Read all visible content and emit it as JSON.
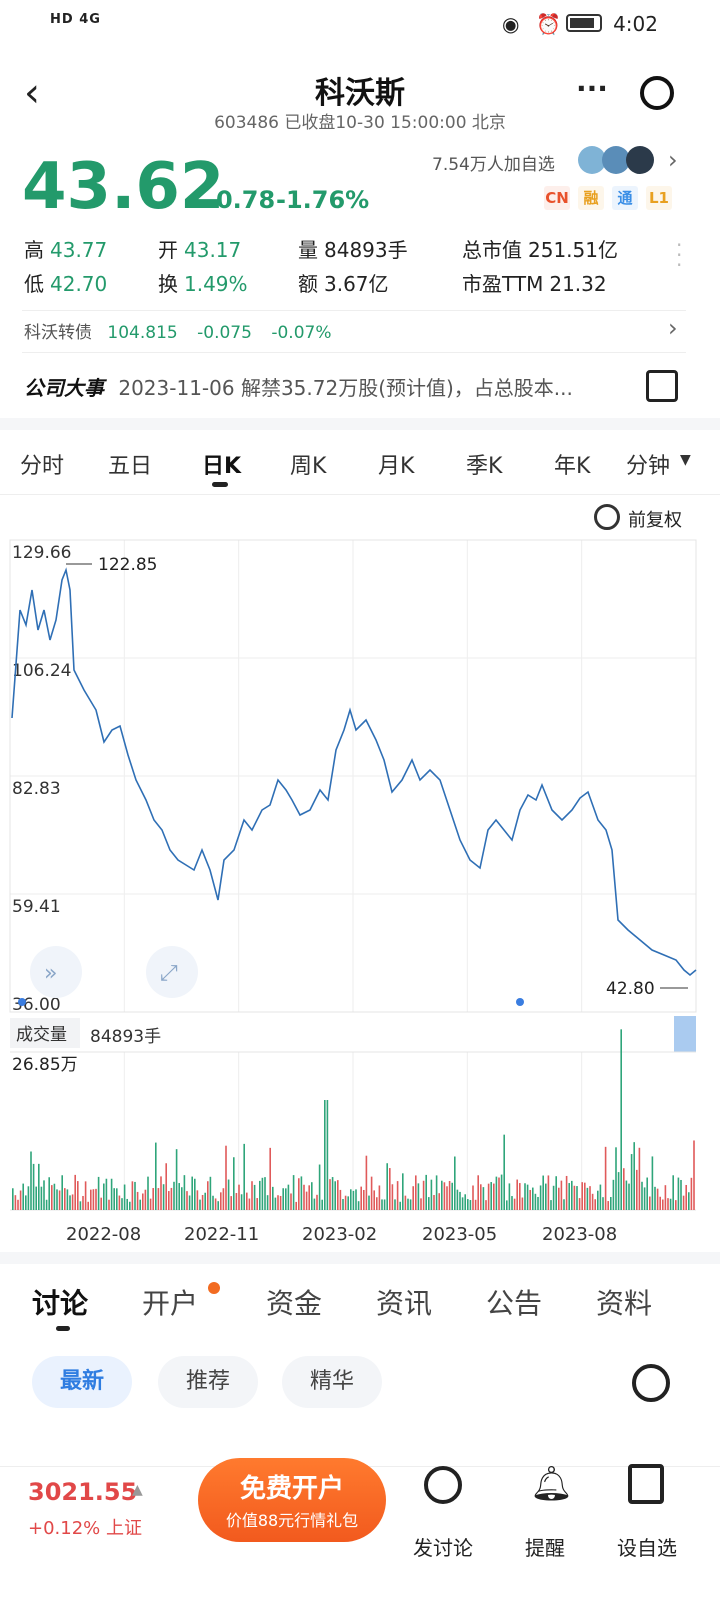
{
  "status": {
    "left": "HD 4G",
    "time": "4:02"
  },
  "header": {
    "title": "科沃斯",
    "subtitle": "603486 已收盘10-30 15:00:00 北京",
    "more": "···"
  },
  "quote": {
    "price": "43.62",
    "change": "-0.78",
    "pct": "-1.76%",
    "followers": "7.54万人加自选",
    "tags": [
      {
        "t": "CN",
        "c": "#e8512b"
      },
      {
        "t": "融",
        "c": "#e8a020"
      },
      {
        "t": "通",
        "c": "#3a8ee6"
      },
      {
        "t": "L1",
        "c": "#e8a020"
      }
    ],
    "stats": [
      {
        "label": "高",
        "value": "43.77"
      },
      {
        "label": "开",
        "value": "43.17"
      },
      {
        "label": "量",
        "value": "84893手"
      },
      {
        "label": "总市值",
        "value": "251.51亿"
      },
      {
        "label": "低",
        "value": "42.70"
      },
      {
        "label": "换",
        "value": "1.49%"
      },
      {
        "label": "额",
        "value": "3.67亿"
      },
      {
        "label": "市盈TTM",
        "value": "21.32"
      }
    ],
    "bond": {
      "label": "科沃转债",
      "price": "104.815",
      "chg": "-0.075",
      "pct": "-0.07%"
    },
    "event": {
      "label": "公司大事",
      "text": "2023-11-06 解禁35.72万股(预计值)，占总股本..."
    }
  },
  "chart_tabs": [
    "分时",
    "五日",
    "日K",
    "周K",
    "月K",
    "季K",
    "年K",
    "分钟"
  ],
  "chart_tab_active": "日K",
  "adjust_label": "前复权",
  "chart_data": {
    "type": "line",
    "ylabels": [
      "129.66",
      "106.24",
      "82.83",
      "59.41",
      "36.00"
    ],
    "ylim": [
      36.0,
      129.66
    ],
    "max_label": "122.85",
    "last_label": "42.80",
    "xlabels": [
      "2022-08",
      "2022-11",
      "2023-02",
      "2023-05",
      "2023-08"
    ],
    "volume_label": "成交量",
    "volume_value": "84893手",
    "volume_max": "26.85万"
  },
  "discuss_tabs": [
    "讨论",
    "开户",
    "资金",
    "资讯",
    "公告",
    "资料"
  ],
  "pills": [
    "最新",
    "推荐",
    "精华"
  ],
  "bottom": {
    "index_value": "3021.55",
    "index_change": "+0.12%",
    "index_name": "上证",
    "open_main": "免费开户",
    "open_sub": "价值88元行情礼包",
    "actions": [
      "发讨论",
      "提醒",
      "设自选"
    ]
  }
}
